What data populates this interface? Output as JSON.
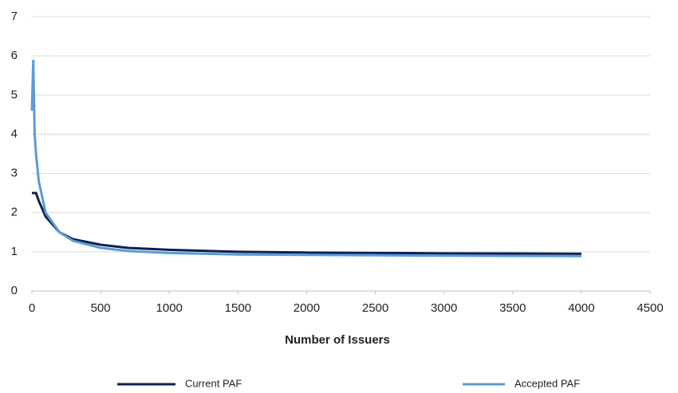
{
  "chart_data": {
    "type": "line",
    "x_label": "Number of Issuers",
    "x": [
      0,
      10,
      20,
      30,
      50,
      100,
      200,
      300,
      500,
      700,
      1000,
      1500,
      2000,
      2500,
      3000,
      4000
    ],
    "series": [
      {
        "name": "Current PAF",
        "color": "#0d1f4f",
        "values": [
          2.5,
          2.5,
          2.5,
          2.5,
          2.3,
          1.9,
          1.5,
          1.32,
          1.18,
          1.1,
          1.05,
          1.0,
          0.98,
          0.97,
          0.96,
          0.95
        ]
      },
      {
        "name": "Accepted PAF",
        "color": "#5b9bd5",
        "values": [
          4.6,
          5.9,
          4.0,
          3.5,
          2.8,
          2.0,
          1.5,
          1.28,
          1.1,
          1.02,
          0.97,
          0.93,
          0.92,
          0.91,
          0.9,
          0.89
        ]
      }
    ],
    "xlim": [
      0,
      4500
    ],
    "xticks": [
      0,
      500,
      1000,
      1500,
      2000,
      2500,
      3000,
      3500,
      4000,
      4500
    ],
    "ylim": [
      0,
      7
    ],
    "yticks": [
      0,
      1,
      2,
      3,
      4,
      5,
      6,
      7
    ],
    "grid": true,
    "legend": "bottom"
  }
}
